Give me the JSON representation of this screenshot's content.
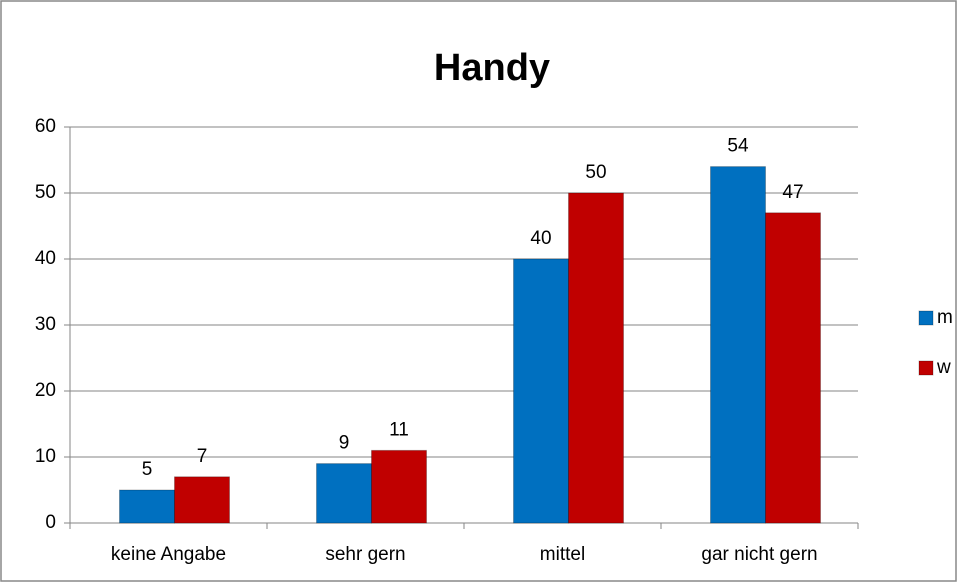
{
  "chart_data": {
    "type": "bar",
    "title": "Handy",
    "categories": [
      "keine Angabe",
      "sehr gern",
      "mittel",
      "gar nicht gern"
    ],
    "series": [
      {
        "name": "m",
        "color": "#0070c0",
        "values": [
          5,
          9,
          40,
          54
        ]
      },
      {
        "name": "w",
        "color": "#c00000",
        "values": [
          7,
          11,
          50,
          47
        ]
      }
    ],
    "ylim": [
      0,
      60
    ],
    "yticks": [
      0,
      10,
      20,
      30,
      40,
      50,
      60
    ],
    "grid": true,
    "legend": "right"
  }
}
